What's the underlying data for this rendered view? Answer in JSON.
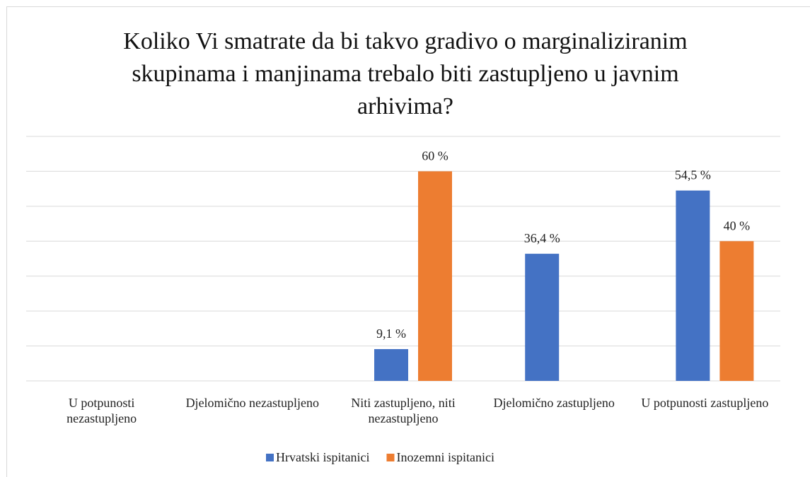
{
  "chart_data": {
    "type": "bar",
    "title": "Koliko Vi smatrate da bi takvo gradivo o marginaliziranim skupinama i manjinama trebalo biti zastupljeno u javnim arhivima?",
    "categories": [
      "U potpunosti nezastupljeno",
      "Djelomično nezastupljeno",
      "Niti zastupljeno, niti nezastupljeno",
      "Djelomično zastupljeno",
      "U potpunosti zastupljeno"
    ],
    "series": [
      {
        "name": "Hrvatski ispitanici",
        "color": "#4472c4",
        "values": [
          null,
          null,
          9.1,
          36.4,
          54.5
        ],
        "value_labels": [
          null,
          null,
          "9,1 %",
          "36,4 %",
          "54,5 %"
        ]
      },
      {
        "name": "Inozemni ispitanici",
        "color": "#ed7d31",
        "values": [
          null,
          null,
          60,
          null,
          40
        ],
        "value_labels": [
          null,
          null,
          "60 %",
          null,
          "40 %"
        ]
      }
    ],
    "ylim": [
      0,
      70
    ],
    "yticks": [
      0,
      10,
      20,
      30,
      40,
      50,
      60,
      70
    ],
    "grid": true,
    "legend": "bottom"
  }
}
